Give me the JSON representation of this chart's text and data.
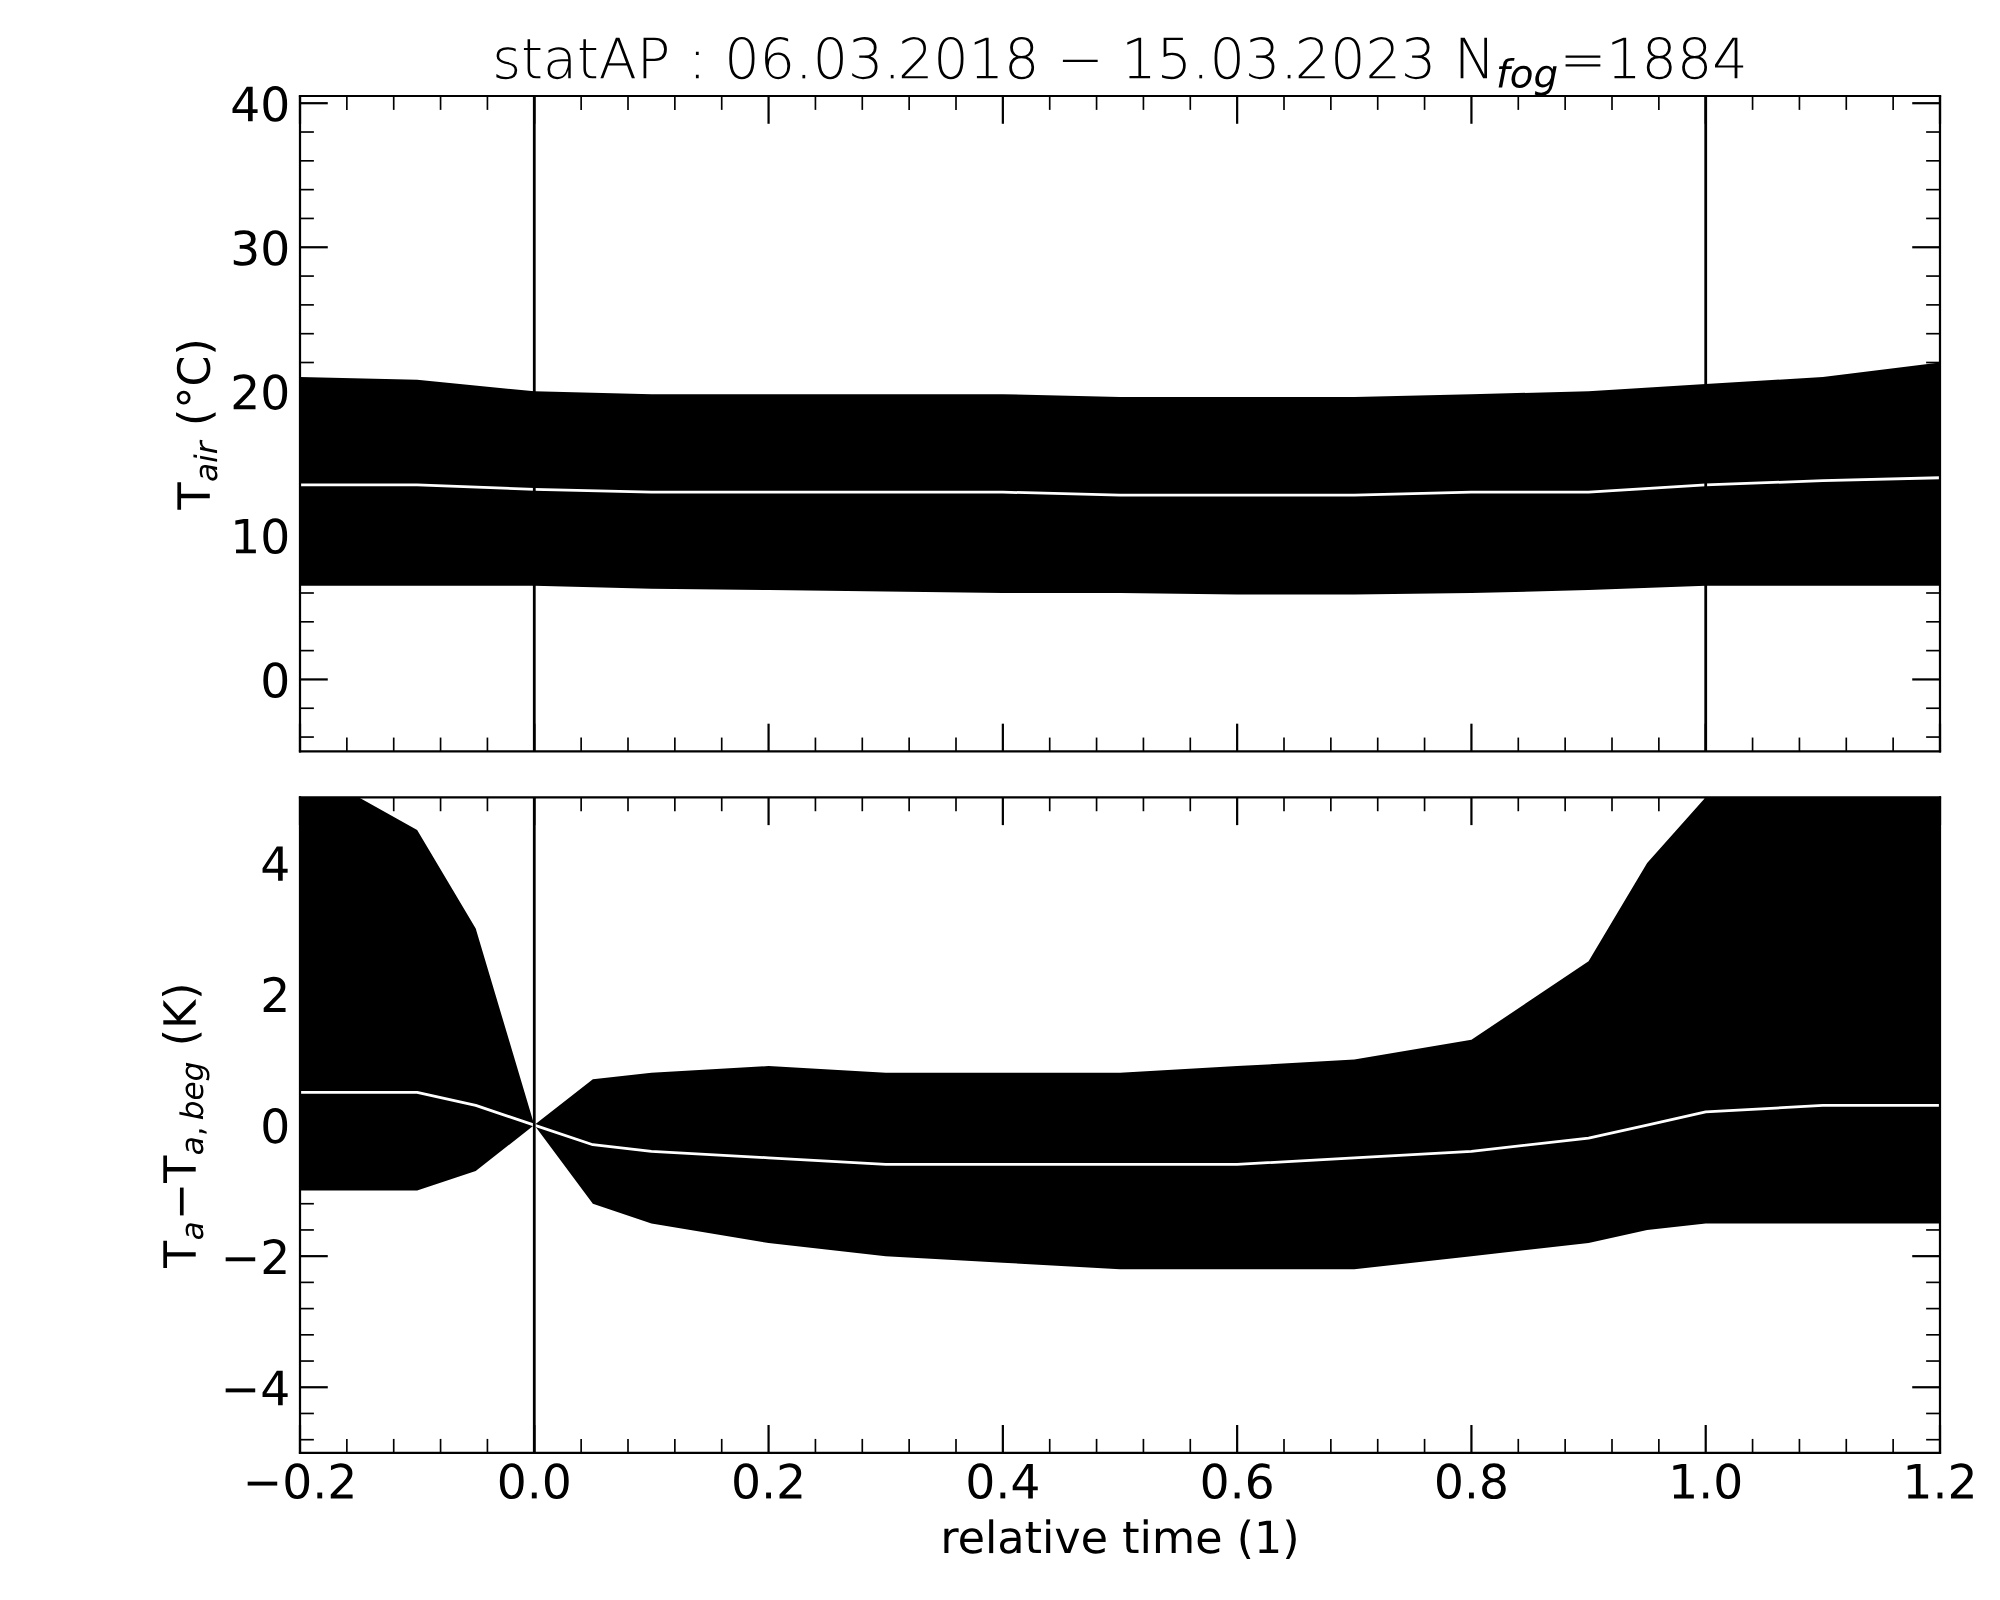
{
  "chart_data": [
    {
      "type": "line",
      "title": "statAP : 06.03.2018 − 15.03.2023 N$_{fog}$=1884",
      "ylabel": "T$_{air}$ (°C)",
      "x": [
        -0.2,
        -0.1,
        0.0,
        0.1,
        0.2,
        0.3,
        0.4,
        0.5,
        0.6,
        0.7,
        0.8,
        0.9,
        1.0,
        1.1,
        1.2
      ],
      "series": [
        {
          "color": "#ffffff",
          "values": [
            13.5,
            13.5,
            13.2,
            13,
            13,
            13,
            13,
            12.8,
            12.8,
            12.8,
            13,
            13,
            13.5,
            13.8,
            14
          ],
          "lower": [
            6.5,
            6.5,
            6.5,
            6.3,
            6.2,
            6.1,
            6,
            6,
            5.9,
            5.9,
            6,
            6.2,
            6.5,
            6.5,
            6.5
          ],
          "upper": [
            21,
            20.8,
            20,
            19.8,
            19.8,
            19.8,
            19.8,
            19.6,
            19.6,
            19.6,
            19.8,
            20,
            20.5,
            21,
            22
          ]
        }
      ],
      "xlim": [
        -0.2,
        1.2
      ],
      "xticks": [
        -0.2,
        0.0,
        0.2,
        0.4,
        0.6,
        0.8,
        1.0,
        1.2
      ],
      "ylim": [
        -5,
        40.5
      ],
      "yticks": [
        0,
        10,
        20,
        30,
        40
      ],
      "tick_labels": "y",
      "ref_lines": [
        {
          "axis": "x",
          "value": 0,
          "color": "#000000"
        },
        {
          "axis": "x",
          "value": 1,
          "color": "#000000"
        }
      ]
    },
    {
      "type": "line",
      "xlabel": "relative time (1)",
      "ylabel": "T$_{a}$−T$_{a,beg}$ (K)",
      "x": [
        -0.2,
        -0.15,
        -0.1,
        -0.05,
        0.0,
        0.05,
        0.1,
        0.2,
        0.3,
        0.4,
        0.5,
        0.6,
        0.7,
        0.8,
        0.9,
        0.95,
        1.0,
        1.1,
        1.2
      ],
      "series": [
        {
          "color": "#ffffff",
          "values": [
            0.5,
            0.5,
            0.5,
            0.3,
            0,
            -0.3,
            -0.4,
            -0.5,
            -0.6,
            -0.6,
            -0.6,
            -0.6,
            -0.5,
            -0.4,
            -0.2,
            0,
            0.2,
            0.3,
            0.3
          ],
          "lower": [
            -1,
            -1,
            -1,
            -0.7,
            0,
            -1.2,
            -1.5,
            -1.8,
            -2,
            -2.1,
            -2.2,
            -2.2,
            -2.2,
            -2,
            -1.8,
            -1.6,
            -1.5,
            -1.5,
            -1.5
          ],
          "upper": [
            5,
            5,
            4.5,
            3,
            0,
            0.7,
            0.8,
            0.9,
            0.8,
            0.8,
            0.8,
            0.9,
            1,
            1.3,
            2.5,
            4,
            5,
            5,
            5
          ]
        }
      ],
      "xlim": [
        -0.2,
        1.2
      ],
      "xticks": [
        {
          "value": -0.2,
          "label": "−0.2"
        },
        {
          "value": 0.0,
          "label": "0.0"
        },
        {
          "value": 0.2,
          "label": "0.2"
        },
        {
          "value": 0.4,
          "label": "0.4"
        },
        {
          "value": 0.6,
          "label": "0.6"
        },
        {
          "value": 0.8,
          "label": "0.8"
        },
        {
          "value": 1.0,
          "label": "1.0"
        },
        {
          "value": 1.2,
          "label": "1.2"
        }
      ],
      "ylim": [
        -5,
        5
      ],
      "yticks": [
        {
          "value": -4,
          "label": "−4"
        },
        {
          "value": -2,
          "label": "−2"
        },
        0,
        2,
        4
      ],
      "ref_lines": [
        {
          "axis": "x",
          "value": 0,
          "color": "#000000"
        }
      ]
    }
  ]
}
